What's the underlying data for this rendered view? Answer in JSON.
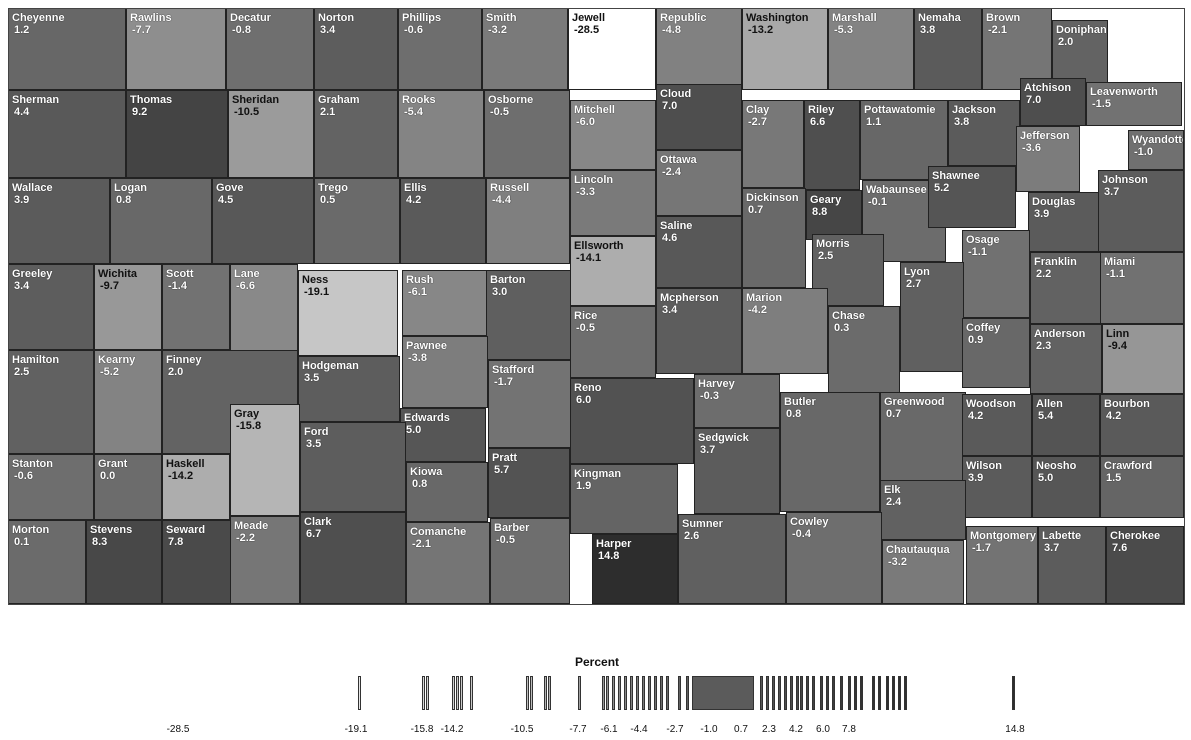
{
  "legend": {
    "title": "Percent",
    "ticks": [
      "-28.5",
      "-19.1",
      "-15.8",
      "-14.2",
      "-10.5",
      "-7.7",
      "-6.1",
      "-4.4",
      "-2.7",
      "-1.0",
      "0.7",
      "2.3",
      "4.2",
      "6.0",
      "7.8",
      "14.8"
    ]
  },
  "counties": [
    {
      "name": "Cheyenne",
      "value": "1.2"
    },
    {
      "name": "Rawlins",
      "value": "-7.7"
    },
    {
      "name": "Decatur",
      "value": "-0.8"
    },
    {
      "name": "Norton",
      "value": "3.4"
    },
    {
      "name": "Phillips",
      "value": "-0.6"
    },
    {
      "name": "Smith",
      "value": "-3.2"
    },
    {
      "name": "Jewell",
      "value": "-28.5"
    },
    {
      "name": "Republic",
      "value": "-4.8"
    },
    {
      "name": "Washington",
      "value": "-13.2"
    },
    {
      "name": "Marshall",
      "value": "-5.3"
    },
    {
      "name": "Nemaha",
      "value": "3.8"
    },
    {
      "name": "Brown",
      "value": "-2.1"
    },
    {
      "name": "Doniphan",
      "value": "2.0"
    },
    {
      "name": "Sherman",
      "value": "4.4"
    },
    {
      "name": "Thomas",
      "value": "9.2"
    },
    {
      "name": "Sheridan",
      "value": "-10.5"
    },
    {
      "name": "Graham",
      "value": "2.1"
    },
    {
      "name": "Rooks",
      "value": "-5.4"
    },
    {
      "name": "Osborne",
      "value": "-0.5"
    },
    {
      "name": "Mitchell",
      "value": "-6.0"
    },
    {
      "name": "Cloud",
      "value": "7.0"
    },
    {
      "name": "Clay",
      "value": "-2.7"
    },
    {
      "name": "Riley",
      "value": "6.6"
    },
    {
      "name": "Pottawatomie",
      "value": "1.1"
    },
    {
      "name": "Jackson",
      "value": "3.8"
    },
    {
      "name": "Atchison",
      "value": "7.0"
    },
    {
      "name": "Leavenworth",
      "value": "-1.5"
    },
    {
      "name": "Jefferson",
      "value": "-3.6"
    },
    {
      "name": "Wyandotte",
      "value": "-1.0"
    },
    {
      "name": "Wallace",
      "value": "3.9"
    },
    {
      "name": "Logan",
      "value": "0.8"
    },
    {
      "name": "Gove",
      "value": "4.5"
    },
    {
      "name": "Trego",
      "value": "0.5"
    },
    {
      "name": "Ellis",
      "value": "4.2"
    },
    {
      "name": "Russell",
      "value": "-4.4"
    },
    {
      "name": "Lincoln",
      "value": "-3.3"
    },
    {
      "name": "Ottawa",
      "value": "-2.4"
    },
    {
      "name": "Dickinson",
      "value": "0.7"
    },
    {
      "name": "Geary",
      "value": "8.8"
    },
    {
      "name": "Wabaunsee",
      "value": "-0.1"
    },
    {
      "name": "Shawnee",
      "value": "5.2"
    },
    {
      "name": "Douglas",
      "value": "3.9"
    },
    {
      "name": "Johnson",
      "value": "3.7"
    },
    {
      "name": "Greeley",
      "value": "3.4"
    },
    {
      "name": "Wichita",
      "value": "-9.7"
    },
    {
      "name": "Scott",
      "value": "-1.4"
    },
    {
      "name": "Lane",
      "value": "-6.6"
    },
    {
      "name": "Ness",
      "value": "-19.1"
    },
    {
      "name": "Rush",
      "value": "-6.1"
    },
    {
      "name": "Barton",
      "value": "3.0"
    },
    {
      "name": "Ellsworth",
      "value": "-14.1"
    },
    {
      "name": "Saline",
      "value": "4.6"
    },
    {
      "name": "Morris",
      "value": "2.5"
    },
    {
      "name": "Osage",
      "value": "-1.1"
    },
    {
      "name": "Lyon",
      "value": "2.7"
    },
    {
      "name": "Franklin",
      "value": "2.2"
    },
    {
      "name": "Miami",
      "value": "-1.1"
    },
    {
      "name": "Hamilton",
      "value": "2.5"
    },
    {
      "name": "Kearny",
      "value": "-5.2"
    },
    {
      "name": "Finney",
      "value": "2.0"
    },
    {
      "name": "Hodgeman",
      "value": "3.5"
    },
    {
      "name": "Pawnee",
      "value": "-3.8"
    },
    {
      "name": "Stafford",
      "value": "-1.7"
    },
    {
      "name": "Rice",
      "value": "-0.5"
    },
    {
      "name": "Mcpherson",
      "value": "3.4"
    },
    {
      "name": "Marion",
      "value": "-4.2"
    },
    {
      "name": "Chase",
      "value": "0.3"
    },
    {
      "name": "Coffey",
      "value": "0.9"
    },
    {
      "name": "Anderson",
      "value": "2.3"
    },
    {
      "name": "Linn",
      "value": "-9.4"
    },
    {
      "name": "Gray",
      "value": "-15.8"
    },
    {
      "name": "Edwards",
      "value": "5.0"
    },
    {
      "name": "Reno",
      "value": "6.0"
    },
    {
      "name": "Harvey",
      "value": "-0.3"
    },
    {
      "name": "Butler",
      "value": "0.8"
    },
    {
      "name": "Greenwood",
      "value": "0.7"
    },
    {
      "name": "Woodson",
      "value": "4.2"
    },
    {
      "name": "Allen",
      "value": "5.4"
    },
    {
      "name": "Bourbon",
      "value": "4.2"
    },
    {
      "name": "Stanton",
      "value": "-0.6"
    },
    {
      "name": "Grant",
      "value": "0.0"
    },
    {
      "name": "Haskell",
      "value": "-14.2"
    },
    {
      "name": "Ford",
      "value": "3.5"
    },
    {
      "name": "Kiowa",
      "value": "0.8"
    },
    {
      "name": "Pratt",
      "value": "5.7"
    },
    {
      "name": "Kingman",
      "value": "1.9"
    },
    {
      "name": "Sedgwick",
      "value": "3.7"
    },
    {
      "name": "Wilson",
      "value": "3.9"
    },
    {
      "name": "Neosho",
      "value": "5.0"
    },
    {
      "name": "Crawford",
      "value": "1.5"
    },
    {
      "name": "Elk",
      "value": "2.4"
    },
    {
      "name": "Morton",
      "value": "0.1"
    },
    {
      "name": "Stevens",
      "value": "8.3"
    },
    {
      "name": "Seward",
      "value": "7.8"
    },
    {
      "name": "Meade",
      "value": "-2.2"
    },
    {
      "name": "Clark",
      "value": "6.7"
    },
    {
      "name": "Comanche",
      "value": "-2.1"
    },
    {
      "name": "Barber",
      "value": "-0.5"
    },
    {
      "name": "Harper",
      "value": "14.8"
    },
    {
      "name": "Sumner",
      "value": "2.6"
    },
    {
      "name": "Cowley",
      "value": "-0.4"
    },
    {
      "name": "Chautauqua",
      "value": "-3.2"
    },
    {
      "name": "Montgomery",
      "value": "-1.7"
    },
    {
      "name": "Labette",
      "value": "3.7"
    },
    {
      "name": "Cherokee",
      "value": "7.6"
    }
  ]
}
